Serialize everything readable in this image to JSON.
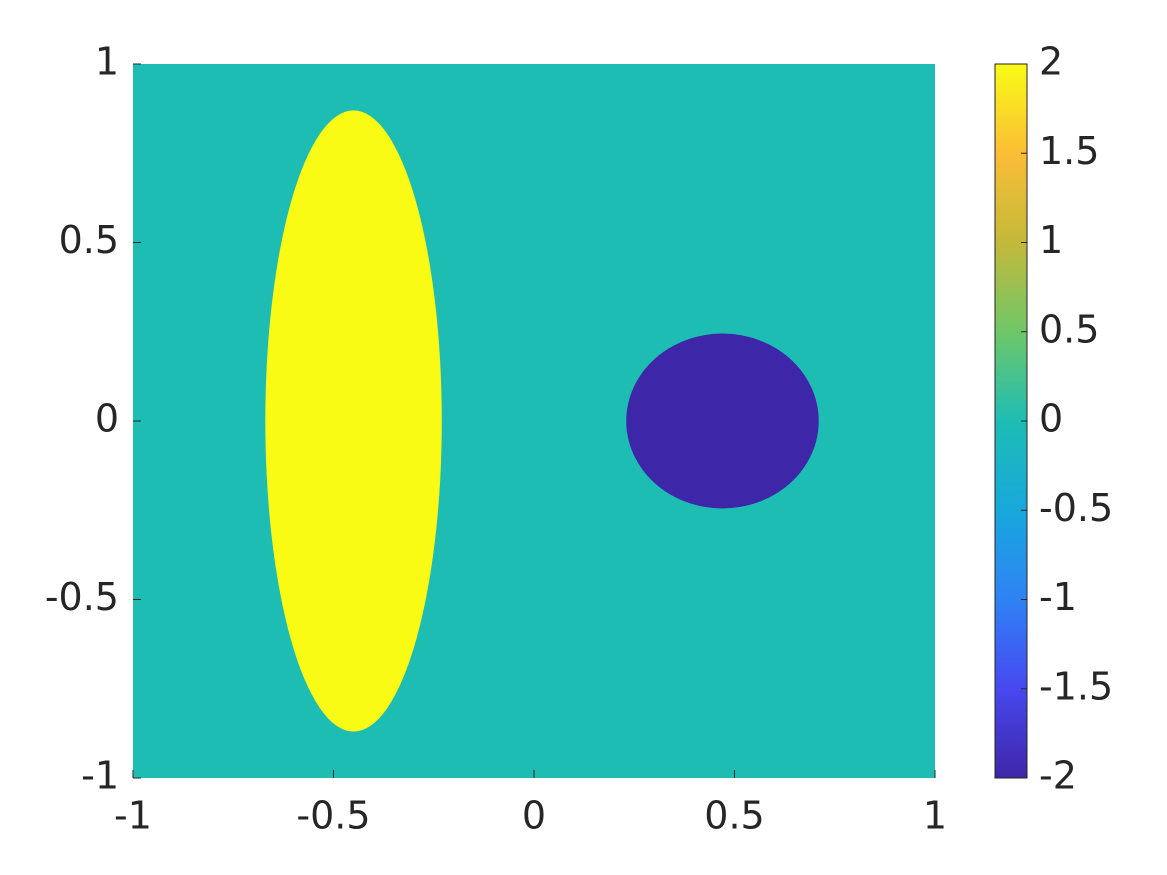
{
  "chart_data": {
    "type": "heatmap",
    "xlim": [
      -1,
      1
    ],
    "ylim": [
      -1,
      1
    ],
    "xticks": [
      -1,
      -0.5,
      0,
      0.5,
      1
    ],
    "yticks": [
      -1,
      -0.5,
      0,
      0.5,
      1
    ],
    "background_value": 0,
    "regions": [
      {
        "shape": "ellipse",
        "cx": -0.45,
        "cy": 0,
        "rx": 0.22,
        "ry": 0.87,
        "value": 2
      },
      {
        "shape": "ellipse",
        "cx": 0.47,
        "cy": 0,
        "rx": 0.24,
        "ry": 0.245,
        "value": -2
      }
    ],
    "clim": [
      -2,
      2
    ],
    "cticks": [
      -2,
      -1.5,
      -1,
      -0.5,
      0,
      0.5,
      1,
      1.5,
      2
    ],
    "colormap": [
      "#3e26a8",
      "#4748f0",
      "#2f82f5",
      "#17a8dc",
      "#1ebdb4",
      "#6fc768",
      "#c4b93a",
      "#fbbd36",
      "#f9fb15"
    ]
  }
}
